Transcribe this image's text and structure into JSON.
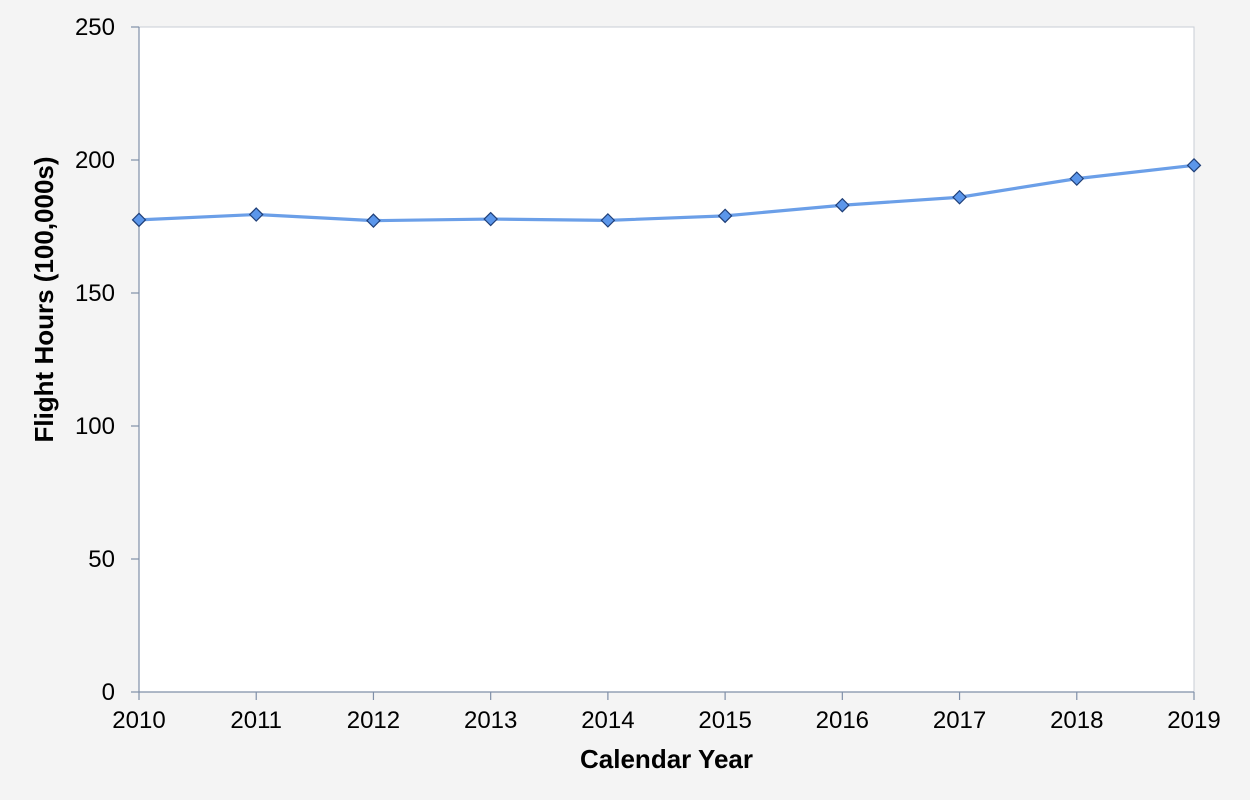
{
  "chart_data": {
    "type": "line",
    "title": "",
    "xlabel": "Calendar Year",
    "ylabel": "Flight Hours (100,000s)",
    "x": [
      "2010",
      "2011",
      "2012",
      "2013",
      "2014",
      "2015",
      "2016",
      "2017",
      "2018",
      "2019"
    ],
    "series": [
      {
        "values": [
          177.5,
          179.5,
          177.2,
          177.8,
          177.3,
          179.0,
          183.0,
          186.0,
          193.0,
          198.0
        ]
      }
    ],
    "ylim": [
      0,
      250
    ],
    "yticks": [
      "0",
      "50",
      "100",
      "150",
      "200",
      "250"
    ],
    "grid": false,
    "legend": "none",
    "colors": {
      "line": "#6b9fe8",
      "marker_fill": "#5b96ea",
      "marker_stroke": "#1f3f78",
      "axis": "#7f8fa8",
      "plot_background": "#ffffff",
      "page_background": "#f4f4f4"
    }
  }
}
